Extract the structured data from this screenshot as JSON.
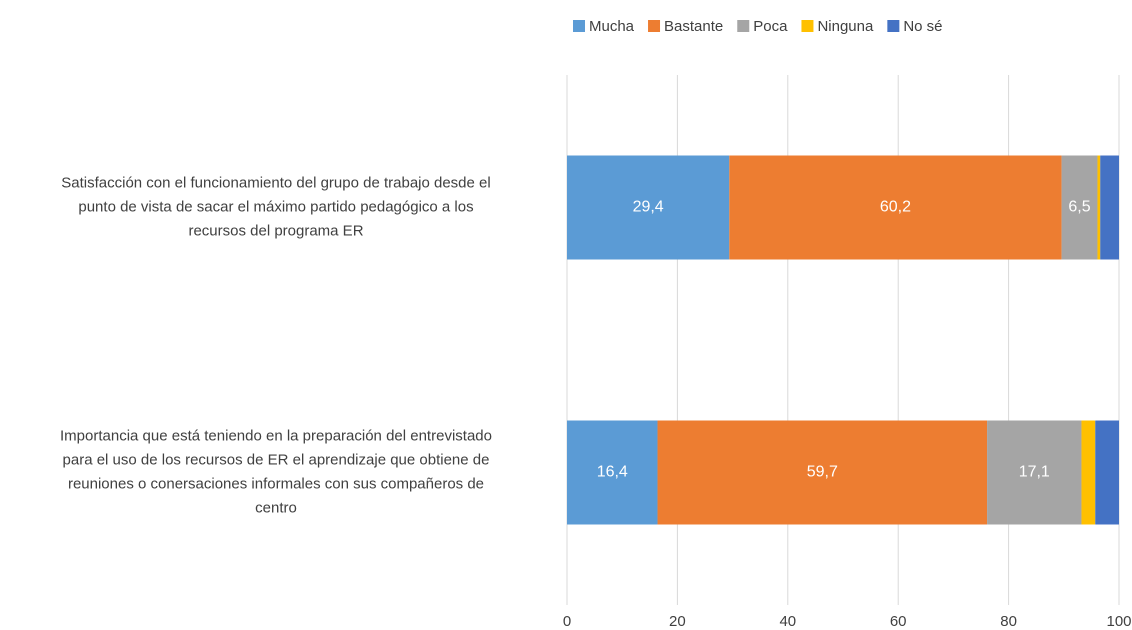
{
  "chart_data": {
    "type": "stacked_barh",
    "categories": [
      "Satisfacción con el funcionamiento del grupo de trabajo desde el\npunto de vista de sacar el máximo partido pedagógico a los\nrecursos del programa ER",
      "Importancia que está teniendo en la preparación del entrevistado\npara el uso de los recursos de ER el aprendizaje que obtiene de\nreuniones o conersaciones informales con sus compañeros de\ncentro"
    ],
    "series": [
      {
        "name": "Mucha",
        "color": "#5b9bd5",
        "values": [
          29.4,
          16.4
        ],
        "value_labels": [
          "29,4",
          "16,4"
        ]
      },
      {
        "name": "Bastante",
        "color": "#ed7d31",
        "values": [
          60.2,
          59.7
        ],
        "value_labels": [
          "60,2",
          "59,7"
        ]
      },
      {
        "name": "Poca",
        "color": "#a5a5a5",
        "values": [
          6.5,
          17.1
        ],
        "value_labels": [
          "6,5",
          "17,1"
        ]
      },
      {
        "name": "Ninguna",
        "color": "#ffc000",
        "values": [
          0.5,
          2.5
        ]
      },
      {
        "name": "No sé",
        "color": "#4472c4",
        "values": [
          3.4,
          4.3
        ]
      }
    ],
    "xlim": [
      0,
      100
    ],
    "xticks": [
      0,
      20,
      40,
      60,
      80,
      100
    ],
    "grid": true,
    "legend": "top"
  }
}
